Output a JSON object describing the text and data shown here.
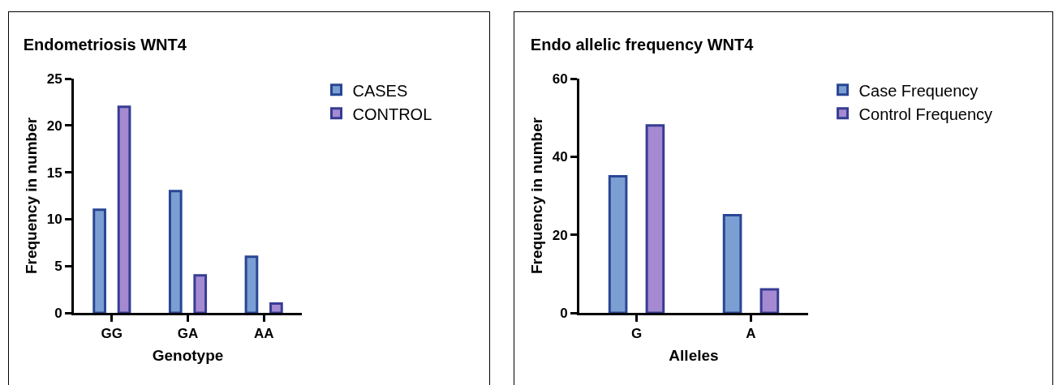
{
  "chart_data": [
    {
      "type": "bar",
      "title": "Endometriosis WNT4",
      "xlabel": "Genotype",
      "ylabel": "Frequency in number",
      "categories": [
        "GG",
        "GA",
        "AA"
      ],
      "series": [
        {
          "name": "CASES",
          "color": "#7b9fd3",
          "values": [
            11,
            13,
            6
          ]
        },
        {
          "name": "CONTROL",
          "color": "#a58ad2",
          "values": [
            22,
            4,
            1
          ]
        }
      ],
      "ylim": [
        0,
        25
      ],
      "yticks": [
        0,
        5,
        10,
        15,
        20,
        25
      ],
      "grid": false,
      "legend": "top right"
    },
    {
      "type": "bar",
      "title": "Endo allelic frequency WNT4",
      "xlabel": "Alleles",
      "ylabel": "Frequency in number",
      "categories": [
        "G",
        "A"
      ],
      "series": [
        {
          "name": "Case Frequency",
          "color": "#7b9fd3",
          "values": [
            35,
            25
          ]
        },
        {
          "name": "Control Frequency",
          "color": "#a58ad2",
          "values": [
            48,
            6
          ]
        }
      ],
      "ylim": [
        0,
        60
      ],
      "yticks": [
        0,
        20,
        40,
        60
      ],
      "grid": false,
      "legend": "top right"
    }
  ]
}
